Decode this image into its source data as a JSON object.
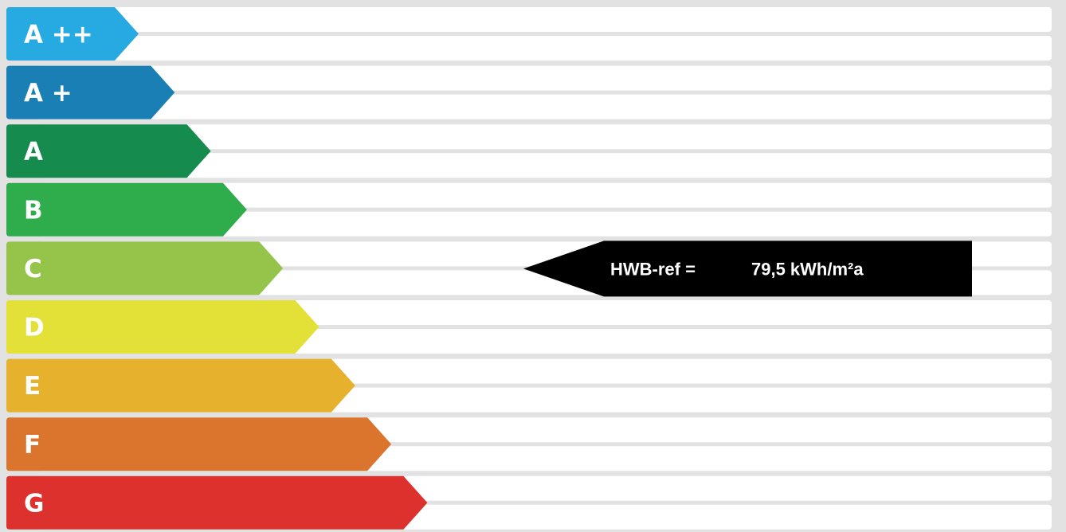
{
  "chart_data": {
    "type": "bar",
    "categories": [
      "A ++",
      "A +",
      "A",
      "B",
      "C",
      "D",
      "E",
      "F",
      "G"
    ],
    "colors": [
      "#27a9e1",
      "#1a7fb5",
      "#168b4e",
      "#2fad4d",
      "#95c44a",
      "#e3e037",
      "#e6b12d",
      "#db742c",
      "#dc312d"
    ],
    "indicator": {
      "label": "HWB-ref =",
      "value": "79,5 kWh/m²a",
      "numeric_value": 79.5,
      "unit": "kWh/m²a",
      "rating_class": "C",
      "color": "#000000"
    }
  }
}
